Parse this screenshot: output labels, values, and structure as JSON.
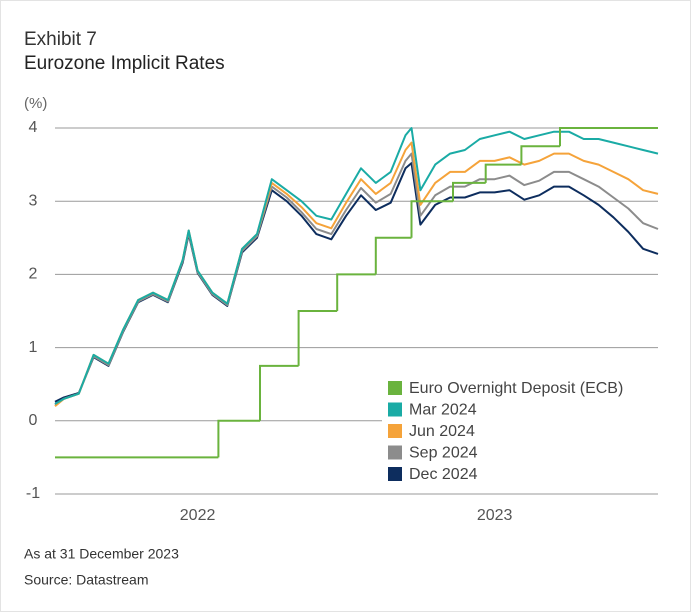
{
  "chart_data": {
    "type": "line",
    "supertitle": "Exhibit 7",
    "title": "Eurozone Implicit Rates",
    "y_label": "(%)",
    "notes": [
      "As at 31 December 2023",
      "Source: Datastream"
    ],
    "x": [
      2022.02,
      2022.05,
      2022.1,
      2022.15,
      2022.2,
      2022.25,
      2022.3,
      2022.35,
      2022.4,
      2022.45,
      2022.47,
      2022.5,
      2022.55,
      2022.6,
      2022.65,
      2022.7,
      2022.75,
      2022.8,
      2022.85,
      2022.9,
      2022.95,
      2023.0,
      2023.05,
      2023.1,
      2023.15,
      2023.2,
      2023.22,
      2023.25,
      2023.3,
      2023.35,
      2023.4,
      2023.45,
      2023.5,
      2023.55,
      2023.6,
      2023.65,
      2023.7,
      2023.75,
      2023.8,
      2023.85,
      2023.9,
      2023.95,
      2024.0,
      2024.05
    ],
    "xlim": [
      2022.02,
      2024.05
    ],
    "xticks": [
      {
        "value": 2022.5,
        "label": "2022"
      },
      {
        "value": 2023.5,
        "label": "2023"
      }
    ],
    "ylim": [
      -1,
      4
    ],
    "yticks": [
      -1,
      0,
      1,
      2,
      3,
      4
    ],
    "grid": true,
    "legend": "lower right",
    "series": [
      {
        "name": "Euro Overnight Deposit (ECB)",
        "color": "#6ab33e",
        "step": true,
        "x": [
          2022.02,
          2022.57,
          2022.71,
          2022.84,
          2022.97,
          2023.1,
          2023.22,
          2023.36,
          2023.47,
          2023.59,
          2023.72,
          2024.05
        ],
        "values": [
          -0.5,
          0,
          0.75,
          1.5,
          2,
          2.5,
          3,
          3.25,
          3.5,
          3.75,
          4,
          4
        ]
      },
      {
        "name": "Mar 2024",
        "color": "#1aaba5",
        "values": [
          0.23,
          0.3,
          0.37,
          0.9,
          0.78,
          1.25,
          1.65,
          1.75,
          1.65,
          2.2,
          2.6,
          2.05,
          1.75,
          1.6,
          2.35,
          2.55,
          3.3,
          3.15,
          3.0,
          2.8,
          2.75,
          3.1,
          3.45,
          3.25,
          3.4,
          3.9,
          4.0,
          3.15,
          3.5,
          3.65,
          3.7,
          3.85,
          3.9,
          3.95,
          3.85,
          3.9,
          3.95,
          3.95,
          3.85,
          3.85,
          3.8,
          3.75,
          3.7,
          3.65
        ]
      },
      {
        "name": "Jun 2024",
        "color": "#f5a33a",
        "values": [
          0.2,
          0.3,
          0.37,
          0.9,
          0.78,
          1.25,
          1.65,
          1.75,
          1.65,
          2.2,
          2.6,
          2.05,
          1.75,
          1.6,
          2.35,
          2.55,
          3.25,
          3.1,
          2.92,
          2.7,
          2.63,
          2.98,
          3.3,
          3.1,
          3.25,
          3.7,
          3.8,
          2.95,
          3.25,
          3.4,
          3.4,
          3.55,
          3.55,
          3.6,
          3.5,
          3.55,
          3.65,
          3.65,
          3.55,
          3.5,
          3.4,
          3.3,
          3.15,
          3.1
        ]
      },
      {
        "name": "Sep 2024",
        "color": "#8c8c8c",
        "values": [
          0.22,
          0.3,
          0.37,
          0.88,
          0.76,
          1.23,
          1.63,
          1.73,
          1.63,
          2.18,
          2.57,
          2.03,
          1.73,
          1.58,
          2.32,
          2.52,
          3.2,
          3.05,
          2.85,
          2.62,
          2.55,
          2.88,
          3.18,
          2.98,
          3.1,
          3.55,
          3.65,
          2.8,
          3.08,
          3.2,
          3.2,
          3.3,
          3.3,
          3.35,
          3.22,
          3.28,
          3.4,
          3.4,
          3.3,
          3.2,
          3.05,
          2.9,
          2.7,
          2.62
        ]
      },
      {
        "name": "Dec 2024",
        "color": "#0d2d5e",
        "values": [
          0.26,
          0.32,
          0.38,
          0.87,
          0.75,
          1.22,
          1.62,
          1.72,
          1.62,
          2.16,
          2.55,
          2.02,
          1.72,
          1.57,
          2.3,
          2.5,
          3.15,
          3.0,
          2.8,
          2.55,
          2.48,
          2.8,
          3.08,
          2.88,
          2.98,
          3.45,
          3.52,
          2.68,
          2.95,
          3.05,
          3.05,
          3.12,
          3.12,
          3.15,
          3.02,
          3.08,
          3.2,
          3.2,
          3.08,
          2.95,
          2.78,
          2.58,
          2.35,
          2.28
        ]
      }
    ]
  }
}
